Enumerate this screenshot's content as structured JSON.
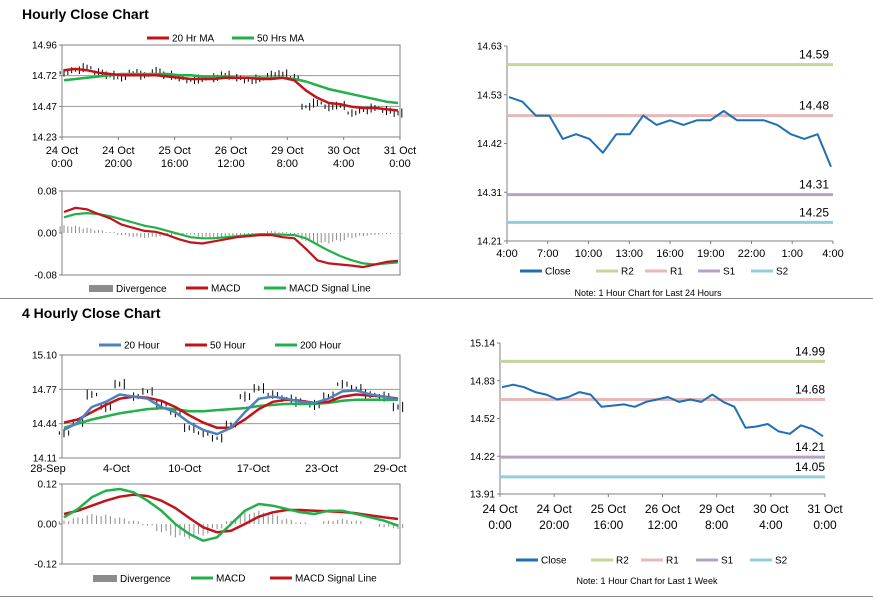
{
  "sections": [
    {
      "title": "Hourly Close Chart"
    },
    {
      "title": "4 Hourly Close Chart"
    }
  ],
  "colors": {
    "red": "#c0141a",
    "green": "#22b04a",
    "blue": "#1f6fb4",
    "steel": "#4f81bd",
    "r2": "#c3d69b",
    "r1": "#e6b9b8",
    "s1": "#b3a2c7",
    "s2": "#93cddd",
    "gray": "#8c8c8c"
  },
  "chart_data": [
    {
      "id": "hourly-price",
      "type": "line",
      "ylim": [
        14.23,
        14.96
      ],
      "yticks": [
        "14.96",
        "14.72",
        "14.47",
        "14.23"
      ],
      "xticks": [
        [
          "24 Oct",
          "0:00"
        ],
        [
          "24 Oct",
          "20:00"
        ],
        [
          "25 Oct",
          "16:00"
        ],
        [
          "26 Oct",
          "12:00"
        ],
        [
          "29 Oct",
          "8:00"
        ],
        [
          "30 Oct",
          "4:00"
        ],
        [
          "31 Oct",
          "0:00"
        ]
      ],
      "legend": [
        "20 Hr MA",
        "50 Hrs MA"
      ],
      "series": [
        {
          "name": "Price",
          "values": [
            14.74,
            14.76,
            14.78,
            14.74,
            14.72,
            14.7,
            14.74,
            14.72,
            14.75,
            14.72,
            14.7,
            14.68,
            14.69,
            14.7,
            14.72,
            14.7,
            14.68,
            14.69,
            14.72,
            14.73,
            14.7,
            14.47,
            14.5,
            14.47,
            14.48,
            14.42,
            14.44,
            14.46,
            14.44,
            14.42
          ]
        },
        {
          "name": "20 Hr MA",
          "values": [
            14.76,
            14.77,
            14.76,
            14.74,
            14.73,
            14.72,
            14.72,
            14.72,
            14.72,
            14.71,
            14.7,
            14.69,
            14.69,
            14.69,
            14.7,
            14.7,
            14.7,
            14.69,
            14.69,
            14.7,
            14.68,
            14.6,
            14.54,
            14.5,
            14.49,
            14.47,
            14.46,
            14.46,
            14.45,
            14.44
          ]
        },
        {
          "name": "50 Hrs MA",
          "values": [
            14.68,
            14.69,
            14.7,
            14.71,
            14.72,
            14.73,
            14.73,
            14.73,
            14.73,
            14.73,
            14.72,
            14.72,
            14.71,
            14.71,
            14.71,
            14.7,
            14.7,
            14.7,
            14.7,
            14.7,
            14.69,
            14.67,
            14.64,
            14.61,
            14.59,
            14.57,
            14.55,
            14.53,
            14.51,
            14.5
          ]
        }
      ]
    },
    {
      "id": "hourly-macd",
      "type": "line",
      "ylim": [
        -0.08,
        0.08
      ],
      "yticks": [
        "0.08",
        "0.00",
        "-0.08"
      ],
      "legend": [
        "Divergence",
        "MACD",
        "MACD Signal Line"
      ],
      "series": [
        {
          "name": "Divergence",
          "values": [
            0.015,
            0.014,
            0.01,
            0.006,
            0.002,
            -0.004,
            -0.008,
            -0.01,
            -0.008,
            -0.006,
            -0.004,
            -0.003,
            -0.008,
            -0.01,
            -0.01,
            -0.008,
            -0.004,
            0.0,
            0.004,
            0.002,
            -0.004,
            -0.015,
            -0.022,
            -0.02,
            -0.016,
            -0.01,
            -0.006,
            -0.004,
            -0.002,
            -0.001
          ]
        },
        {
          "name": "MACD",
          "values": [
            0.04,
            0.048,
            0.045,
            0.036,
            0.028,
            0.016,
            0.01,
            0.004,
            0.002,
            -0.004,
            -0.012,
            -0.018,
            -0.02,
            -0.016,
            -0.012,
            -0.008,
            -0.006,
            -0.004,
            -0.004,
            -0.008,
            -0.01,
            -0.03,
            -0.052,
            -0.058,
            -0.06,
            -0.062,
            -0.065,
            -0.06,
            -0.055,
            -0.053
          ]
        },
        {
          "name": "MACD Signal Line",
          "values": [
            0.03,
            0.036,
            0.038,
            0.036,
            0.032,
            0.026,
            0.02,
            0.014,
            0.01,
            0.004,
            -0.002,
            -0.008,
            -0.01,
            -0.01,
            -0.008,
            -0.006,
            -0.004,
            -0.002,
            -0.002,
            -0.003,
            -0.004,
            -0.01,
            -0.022,
            -0.034,
            -0.044,
            -0.052,
            -0.058,
            -0.06,
            -0.058,
            -0.056
          ]
        }
      ]
    },
    {
      "id": "hourly-close-levels",
      "type": "line",
      "ylim": [
        14.21,
        14.63
      ],
      "yticks": [
        "14.63",
        "14.53",
        "14.42",
        "14.31",
        "14.21"
      ],
      "xticks": [
        "4:00",
        "7:00",
        "10:00",
        "13:00",
        "16:00",
        "19:00",
        "22:00",
        "1:00",
        "4:00"
      ],
      "legend": [
        "Close",
        "R2",
        "R1",
        "S1",
        "S2"
      ],
      "note": "Note: 1 Hour Chart for Last 24 Hours",
      "levels": [
        {
          "name": "R2",
          "value": 14.59,
          "label": "14.59"
        },
        {
          "name": "R1",
          "value": 14.48,
          "label": "14.48"
        },
        {
          "name": "S1",
          "value": 14.31,
          "label": "14.31"
        },
        {
          "name": "S2",
          "value": 14.25,
          "label": "14.25"
        }
      ],
      "series": [
        {
          "name": "Close",
          "values": [
            14.52,
            14.51,
            14.48,
            14.48,
            14.43,
            14.44,
            14.43,
            14.4,
            14.44,
            14.44,
            14.48,
            14.46,
            14.47,
            14.46,
            14.47,
            14.47,
            14.49,
            14.47,
            14.47,
            14.47,
            14.46,
            14.44,
            14.43,
            14.44,
            14.37
          ]
        }
      ]
    },
    {
      "id": "4hourly-price",
      "type": "line",
      "ylim": [
        14.11,
        15.1
      ],
      "yticks": [
        "15.10",
        "14.77",
        "14.44",
        "14.11"
      ],
      "xticks": [
        "28-Sep",
        "4-Oct",
        "10-Oct",
        "17-Oct",
        "23-Oct",
        "29-Oct"
      ],
      "legend": [
        "20 Hour",
        "50 Hour",
        "200 Hour"
      ],
      "series": [
        {
          "name": "Price",
          "values": [
            14.35,
            14.45,
            14.72,
            14.6,
            14.82,
            14.7,
            14.75,
            14.62,
            14.55,
            14.4,
            14.35,
            14.3,
            14.42,
            14.7,
            14.78,
            14.72,
            14.68,
            14.65,
            14.62,
            14.7,
            14.82,
            14.78,
            14.72,
            14.7,
            14.6
          ]
        },
        {
          "name": "20 Hour",
          "values": [
            14.38,
            14.45,
            14.6,
            14.65,
            14.72,
            14.7,
            14.68,
            14.6,
            14.55,
            14.45,
            14.38,
            14.34,
            14.4,
            14.55,
            14.68,
            14.7,
            14.68,
            14.65,
            14.64,
            14.68,
            14.75,
            14.76,
            14.72,
            14.7,
            14.67
          ]
        },
        {
          "name": "50 Hour",
          "values": [
            14.45,
            14.48,
            14.55,
            14.62,
            14.68,
            14.7,
            14.69,
            14.66,
            14.6,
            14.52,
            14.45,
            14.4,
            14.4,
            14.48,
            14.58,
            14.65,
            14.67,
            14.66,
            14.64,
            14.65,
            14.7,
            14.72,
            14.71,
            14.7,
            14.68
          ]
        },
        {
          "name": "200 Hour",
          "values": [
            14.4,
            14.44,
            14.48,
            14.51,
            14.54,
            14.56,
            14.58,
            14.59,
            14.58,
            14.56,
            14.56,
            14.57,
            14.58,
            14.59,
            14.61,
            14.62,
            14.63,
            14.63,
            14.63,
            14.64,
            14.66,
            14.67,
            14.67,
            14.67,
            14.67
          ]
        }
      ]
    },
    {
      "id": "4hourly-macd",
      "type": "line",
      "ylim": [
        -0.12,
        0.12
      ],
      "yticks": [
        "0.12",
        "0.00",
        "-0.12"
      ],
      "legend": [
        "Divergence",
        "MACD",
        "MACD Signal Line"
      ],
      "series": [
        {
          "name": "Divergence",
          "values": [
            0.01,
            0.02,
            0.03,
            0.028,
            0.02,
            0.01,
            -0.005,
            -0.025,
            -0.04,
            -0.045,
            -0.035,
            -0.015,
            0.01,
            0.035,
            0.04,
            0.03,
            0.015,
            0.005,
            0.0,
            0.01,
            0.015,
            0.01,
            0.0,
            -0.01,
            -0.015
          ]
        },
        {
          "name": "MACD",
          "values": [
            0.02,
            0.045,
            0.08,
            0.1,
            0.105,
            0.095,
            0.07,
            0.04,
            0.0,
            -0.03,
            -0.05,
            -0.04,
            0.0,
            0.04,
            0.06,
            0.055,
            0.045,
            0.035,
            0.03,
            0.04,
            0.04,
            0.03,
            0.02,
            0.01,
            -0.005
          ]
        },
        {
          "name": "MACD Signal Line",
          "values": [
            0.03,
            0.04,
            0.055,
            0.07,
            0.082,
            0.088,
            0.084,
            0.07,
            0.048,
            0.018,
            -0.01,
            -0.025,
            -0.02,
            0.0,
            0.022,
            0.035,
            0.042,
            0.042,
            0.04,
            0.038,
            0.036,
            0.032,
            0.026,
            0.02,
            0.015
          ]
        }
      ]
    },
    {
      "id": "4hourly-close-levels",
      "type": "line",
      "ylim": [
        13.91,
        15.14
      ],
      "yticks": [
        "15.14",
        "14.83",
        "14.52",
        "14.22",
        "13.91"
      ],
      "xticks": [
        [
          "24 Oct",
          "0:00"
        ],
        [
          "24 Oct",
          "20:00"
        ],
        [
          "25 Oct",
          "16:00"
        ],
        [
          "26 Oct",
          "12:00"
        ],
        [
          "29 Oct",
          "8:00"
        ],
        [
          "30 Oct",
          "4:00"
        ],
        [
          "31 Oct",
          "0:00"
        ]
      ],
      "legend": [
        "Close",
        "R2",
        "R1",
        "S1",
        "S2"
      ],
      "note": "Note: 1 Hour Chart for Last 1 Week",
      "levels": [
        {
          "name": "R2",
          "value": 14.99,
          "label": "14.99"
        },
        {
          "name": "R1",
          "value": 14.68,
          "label": "14.68"
        },
        {
          "name": "S1",
          "value": 14.21,
          "label": "14.21"
        },
        {
          "name": "S2",
          "value": 14.05,
          "label": "14.05"
        }
      ],
      "series": [
        {
          "name": "Close",
          "values": [
            14.78,
            14.8,
            14.78,
            14.74,
            14.72,
            14.68,
            14.7,
            14.74,
            14.72,
            14.62,
            14.63,
            14.64,
            14.62,
            14.66,
            14.68,
            14.7,
            14.66,
            14.68,
            14.66,
            14.72,
            14.66,
            14.62,
            14.45,
            14.46,
            14.48,
            14.42,
            14.4,
            14.47,
            14.44,
            14.38
          ]
        }
      ]
    }
  ]
}
